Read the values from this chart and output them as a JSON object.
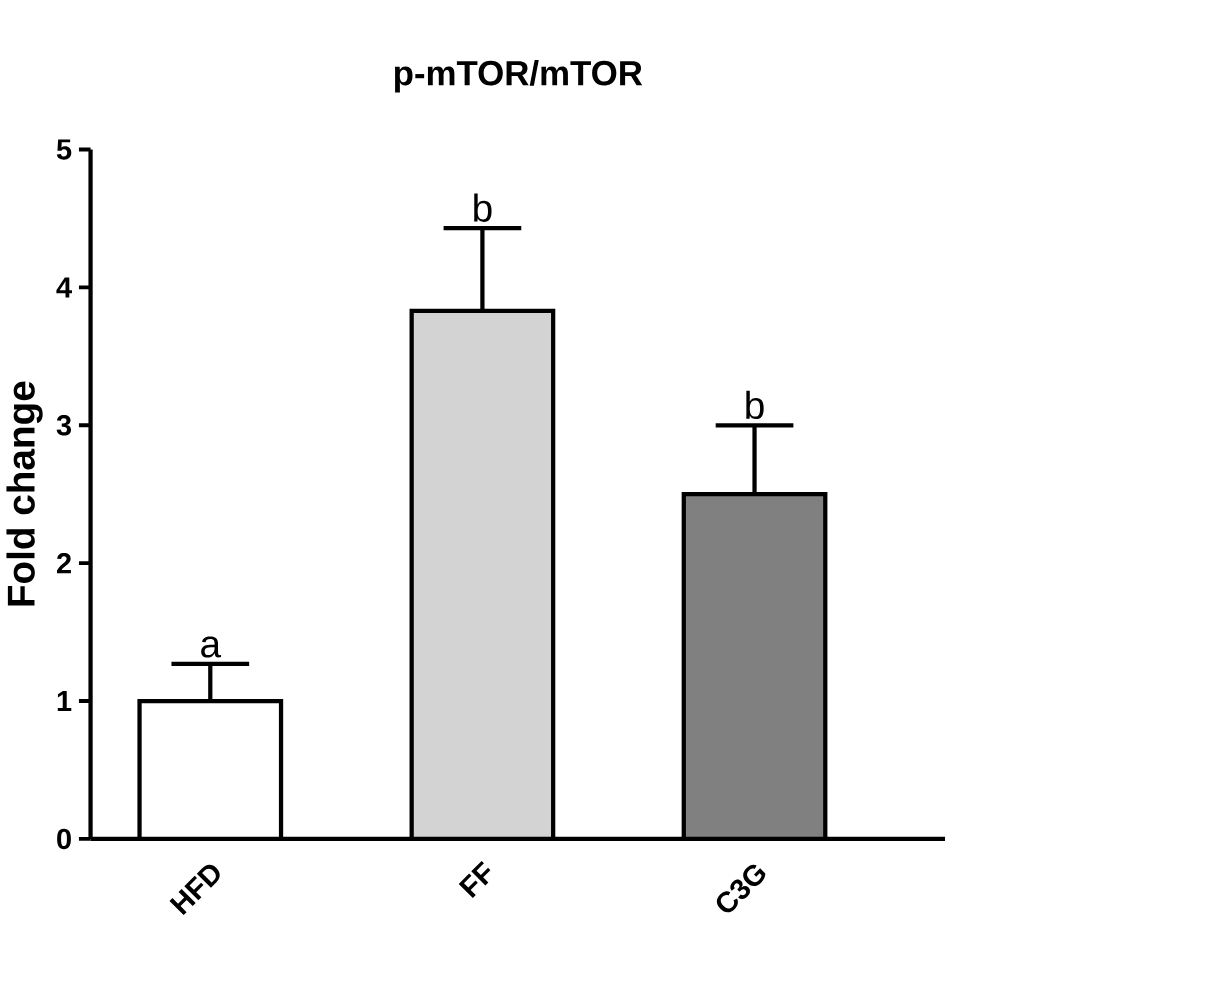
{
  "chart_data": {
    "type": "bar",
    "title": "p-mTOR/mTOR",
    "ylabel": "Fold change",
    "categories": [
      "HFD",
      "FF",
      "C3G"
    ],
    "values": [
      1.0,
      3.83,
      2.5
    ],
    "errors": [
      0.27,
      0.6,
      0.5
    ],
    "colors": [
      "#ffffff",
      "#d3d3d3",
      "#808080"
    ],
    "ylim": [
      0,
      5
    ],
    "yticks": [
      0,
      1,
      2,
      3,
      4,
      5
    ],
    "annotations": [
      {
        "text": "a",
        "x": "HFD",
        "y": 1.27
      },
      {
        "text": "b",
        "x": "FF",
        "y": 4.43
      },
      {
        "text": "b",
        "x": "C3G",
        "y": 3.0
      }
    ],
    "grid": false
  }
}
